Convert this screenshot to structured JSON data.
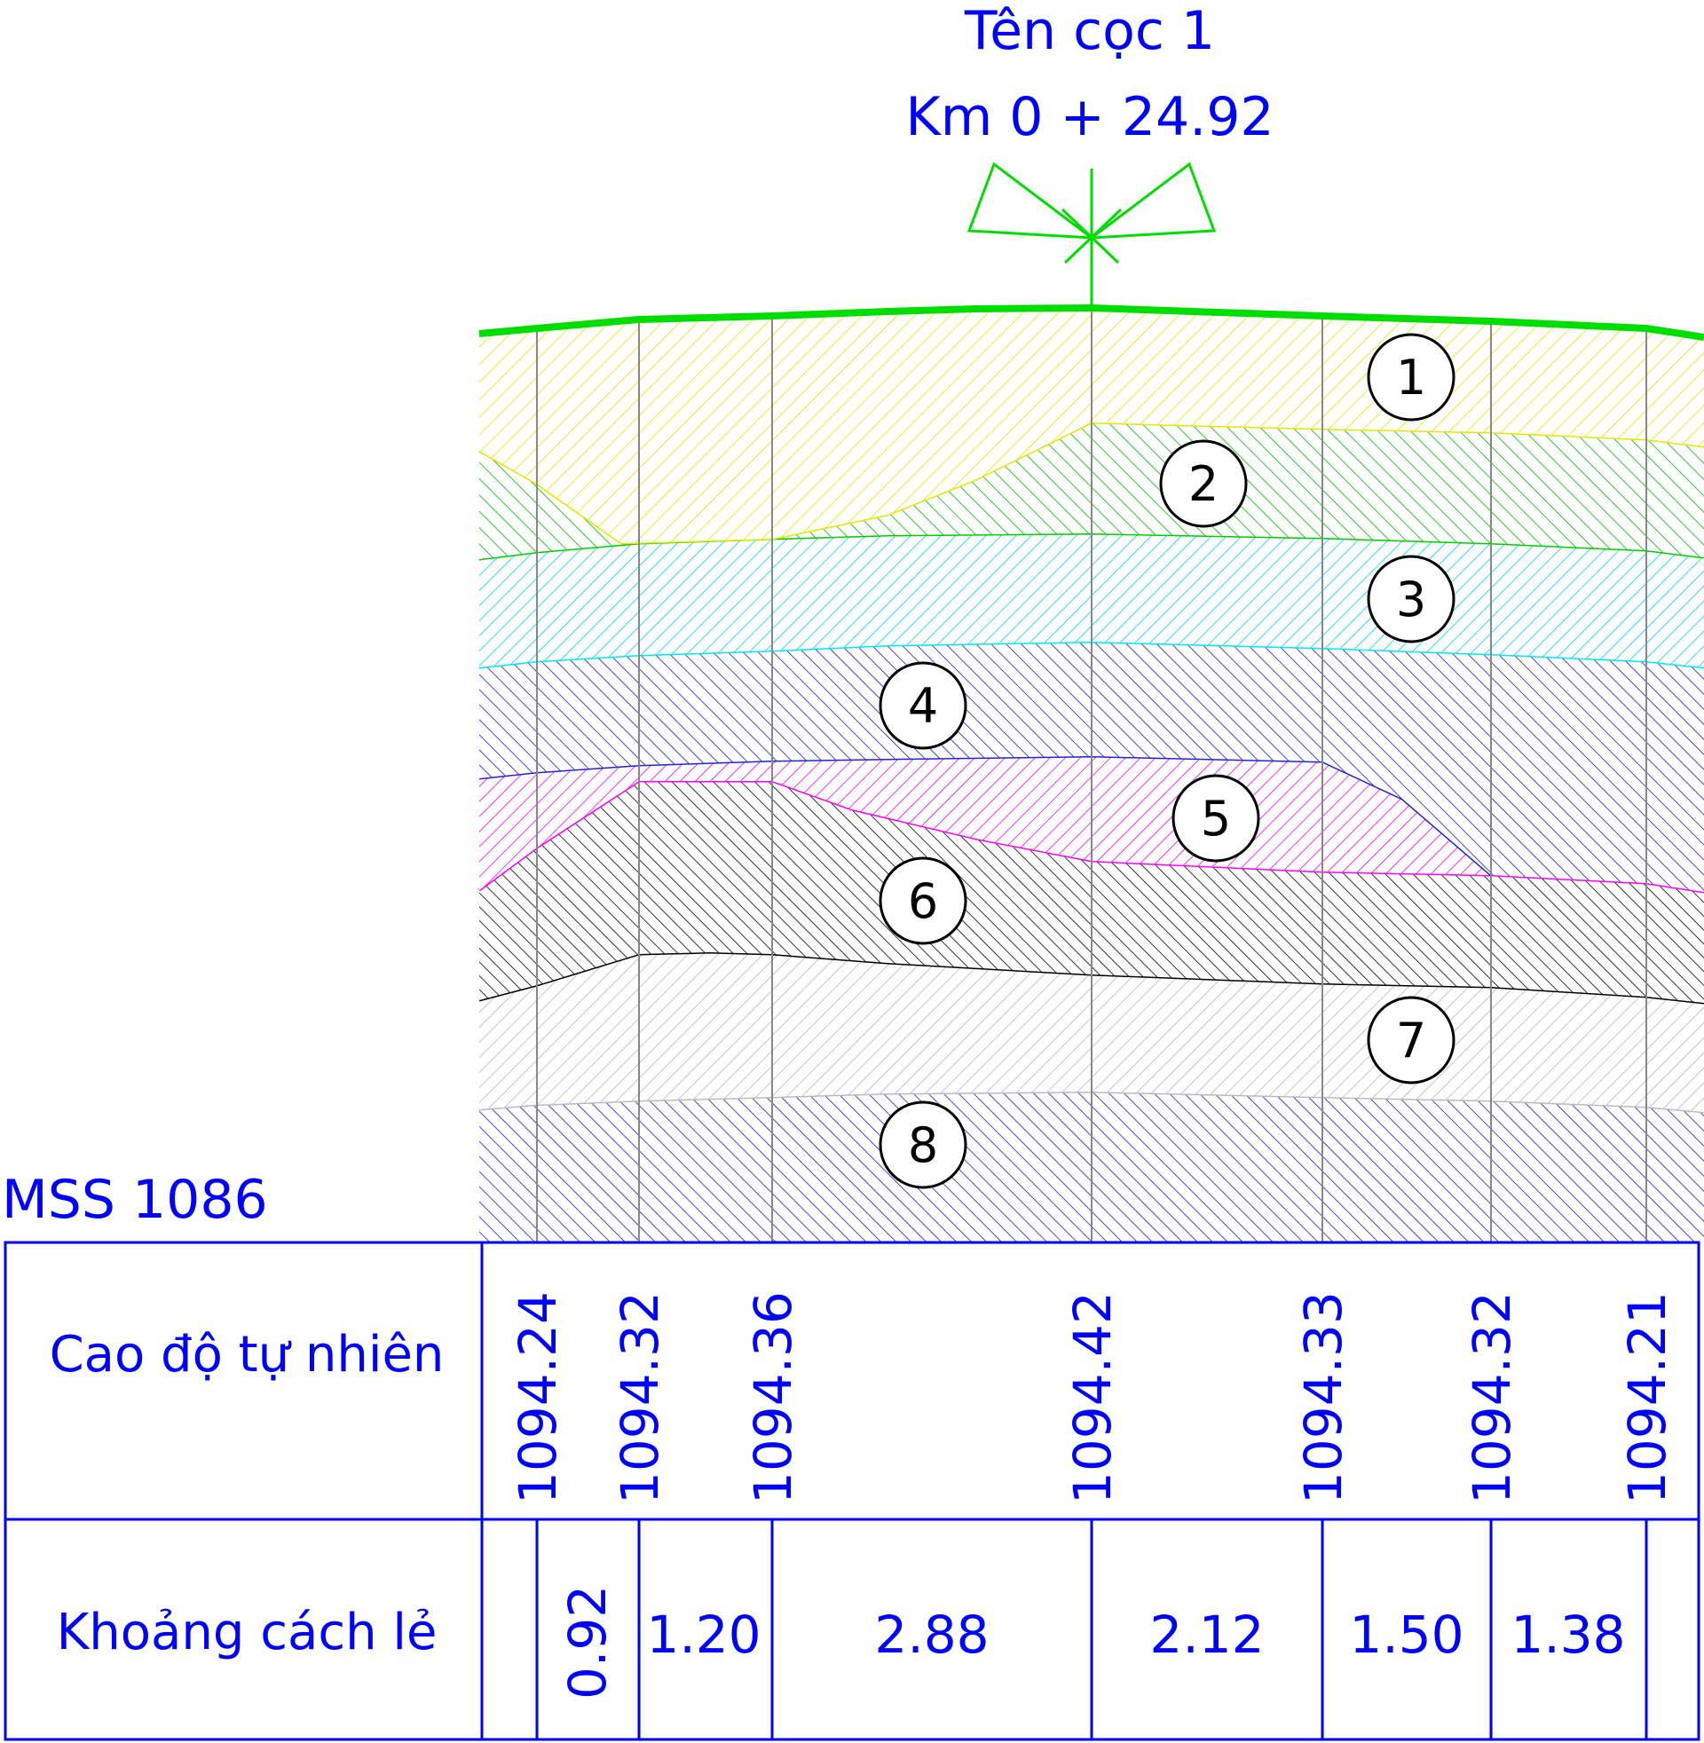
{
  "header": {
    "station_name": "Tên cọc 1",
    "chainage": "Km 0 + 24.92"
  },
  "datum_label": "MSS 1086",
  "table": {
    "row1_label": "Cao độ tự nhiên",
    "row2_label": "Khoảng cách lẻ",
    "elevations": [
      "1094.24",
      "1094.32",
      "1094.36",
      "1094.42",
      "1094.33",
      "1094.32",
      "1094.21"
    ],
    "distances": [
      "",
      "0.92",
      "1.20",
      "2.88",
      "2.12",
      "1.50",
      "1.38",
      ""
    ]
  },
  "layers": [
    {
      "id": "1",
      "color": "#ffff00"
    },
    {
      "id": "2",
      "color": "#00cc00"
    },
    {
      "id": "3",
      "color": "#00e5ff"
    },
    {
      "id": "4",
      "color": "#0000cc"
    },
    {
      "id": "5",
      "color": "#ff00ff"
    },
    {
      "id": "6",
      "color": "#000000"
    },
    {
      "id": "7",
      "color": "#bbbbbb"
    },
    {
      "id": "8",
      "color": "#0000cc"
    }
  ],
  "colors": {
    "annotation": "#0000ff",
    "ground_line": "#00dd00",
    "grid_line": "#888888"
  }
}
